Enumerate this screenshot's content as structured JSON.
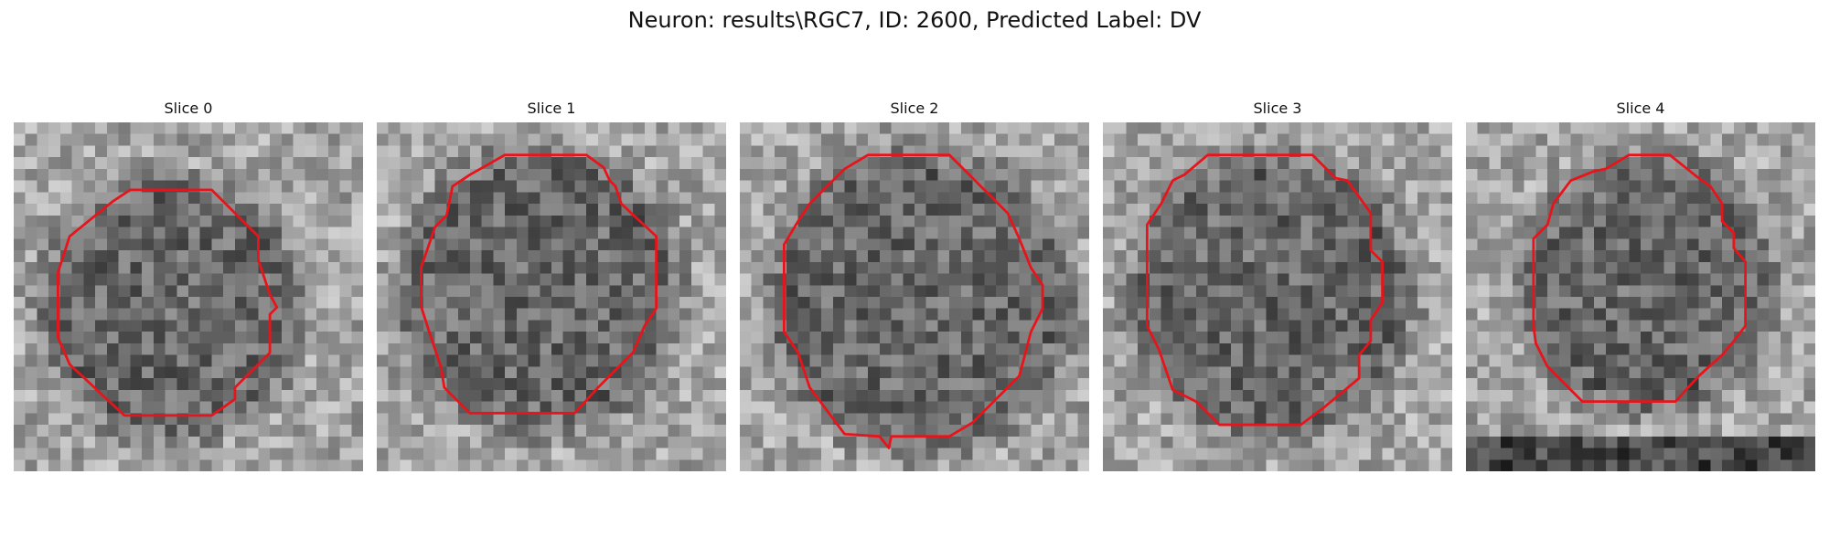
{
  "figure": {
    "title": "Neuron: results\\RGC7, ID: 2600, Predicted Label: DV"
  },
  "panels": [
    {
      "title": "Slice 0"
    },
    {
      "title": "Slice 1"
    },
    {
      "title": "Slice 2"
    },
    {
      "title": "Slice 3"
    },
    {
      "title": "Slice 4"
    }
  ],
  "colors": {
    "contour": "#e8141b",
    "colormap": "grayscale"
  }
}
